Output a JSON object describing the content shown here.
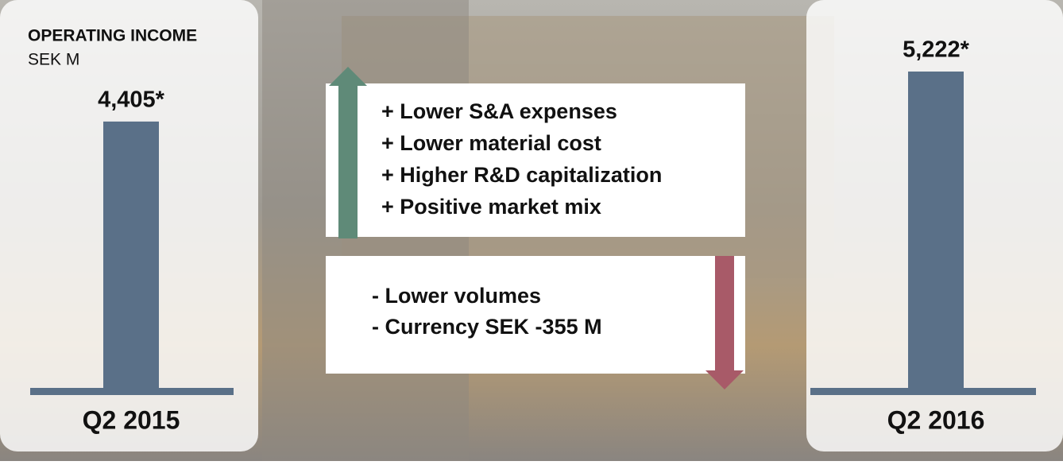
{
  "chart_data": {
    "type": "bar",
    "title": "OPERATING INCOME",
    "subtitle": "SEK M",
    "categories": [
      "Q2 2015",
      "Q2 2016"
    ],
    "values": [
      4405,
      5222
    ],
    "value_labels": [
      "4,405*",
      "5,222*"
    ],
    "color": "#5a7088"
  },
  "positive_factors": [
    "+ Lower S&A expenses",
    "+ Lower material cost",
    "+ Higher R&D capitalization",
    "+ Positive market mix"
  ],
  "negative_factors": [
    "- Lower volumes",
    "- Currency SEK -355 M"
  ]
}
